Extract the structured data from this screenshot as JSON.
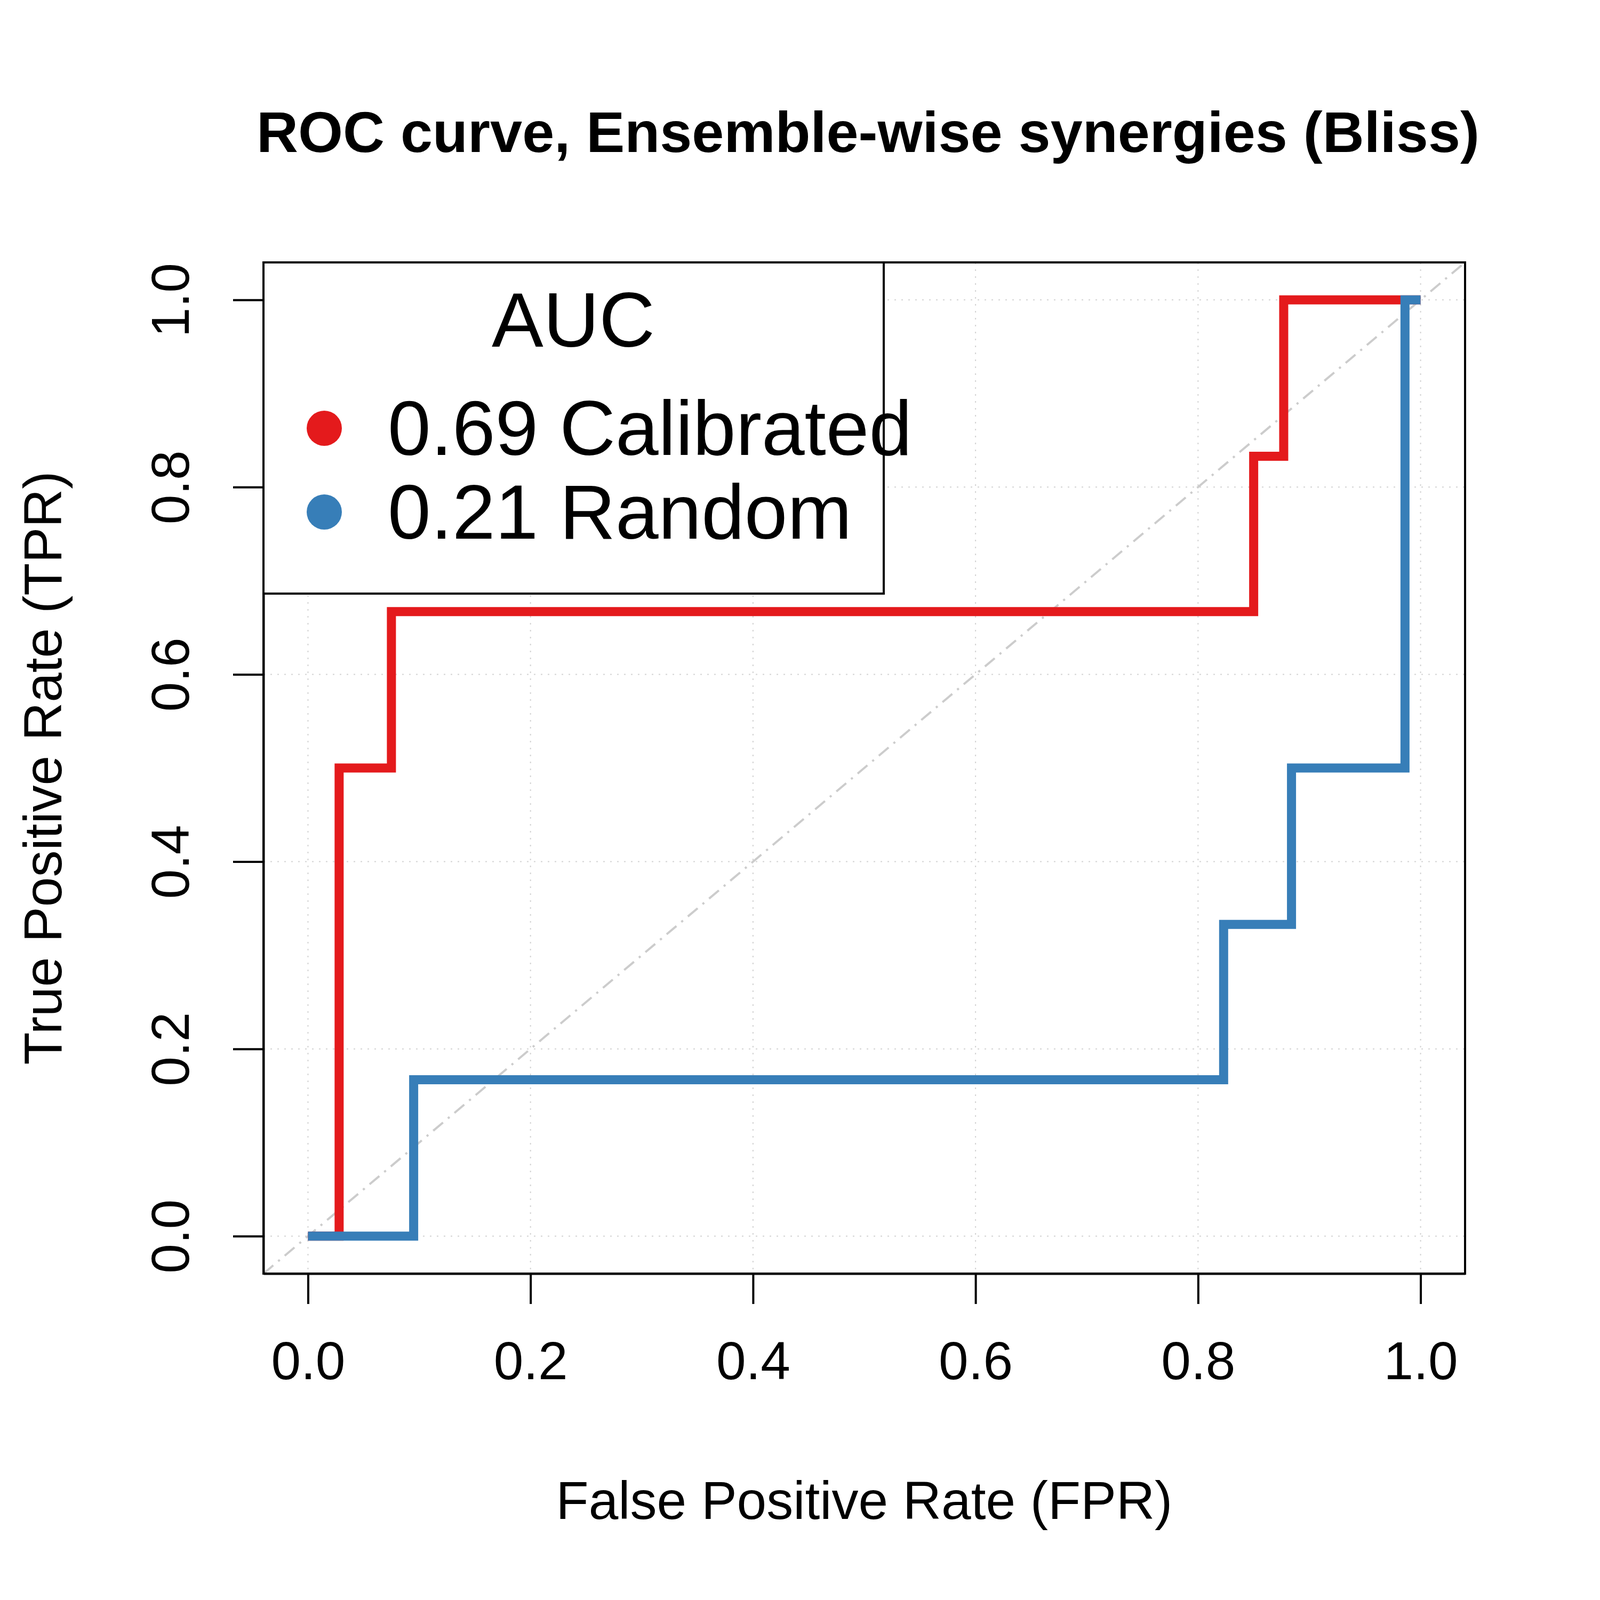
{
  "chart_data": {
    "type": "line",
    "title": "ROC curve, Ensemble-wise synergies (Bliss)",
    "x_label": "False Positive Rate (FPR)",
    "y_label": "True Positive Rate (TPR)",
    "xlim": [
      -0.04,
      1.04
    ],
    "ylim": [
      -0.04,
      1.04
    ],
    "xticks": [
      {
        "value": 0,
        "label": "0.0"
      },
      0.2,
      0.4,
      0.6,
      0.8,
      {
        "value": 1,
        "label": "1.0"
      }
    ],
    "yticks": [
      {
        "value": 0,
        "label": "0.0"
      },
      0.2,
      0.4,
      0.6,
      0.8,
      {
        "value": 1,
        "label": "1.0"
      }
    ],
    "grid": true,
    "legend": "top-left",
    "legend_title": "AUC",
    "line_style": "step",
    "series": [
      {
        "name": "Calibrated",
        "auc": 0.69,
        "color": "#e41a1c",
        "x": [
          0,
          0.028,
          0.075,
          0.85,
          0.877,
          1.0
        ],
        "values": [
          0,
          0.5,
          0.667,
          0.833,
          1.0,
          1.0
        ]
      },
      {
        "name": "Random",
        "auc": 0.21,
        "color": "#377eb8",
        "x": [
          0,
          0.095,
          0.823,
          0.884,
          0.986,
          1.0
        ],
        "values": [
          0,
          0.167,
          0.333,
          0.5,
          1.0,
          1.0
        ]
      }
    ]
  }
}
